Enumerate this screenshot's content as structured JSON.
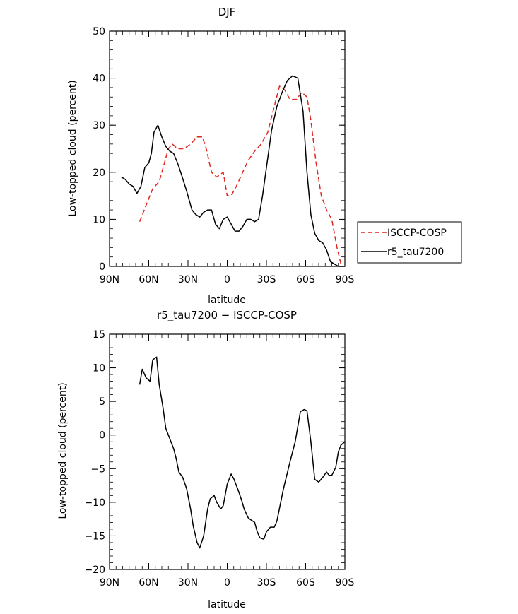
{
  "chart_data": [
    {
      "type": "line",
      "title": "DJF",
      "xlabel": "latitude",
      "ylabel": "Low-topped cloud (percent)",
      "xlim": [
        -90,
        90
      ],
      "ylim": [
        0,
        50
      ],
      "x_ticks": [
        -90,
        -60,
        -30,
        0,
        30,
        60,
        90
      ],
      "x_tick_labels": [
        "90N",
        "60N",
        "30N",
        "0",
        "30S",
        "60S",
        "90S"
      ],
      "y_ticks": [
        0,
        10,
        20,
        30,
        40,
        50
      ],
      "y_tick_labels": [
        "0",
        "10",
        "20",
        "30",
        "40",
        "50"
      ],
      "legend_position": "right",
      "series": [
        {
          "name": "ISCCP-COSP",
          "color": "#e0261e",
          "dash": "dashed",
          "x": [
            -67,
            -62,
            -57,
            -52,
            -48,
            -45,
            -42,
            -38,
            -33,
            -28,
            -23,
            -19,
            -16,
            -12,
            -8,
            -3,
            0,
            3,
            7,
            11,
            16,
            21,
            26,
            31,
            36,
            40,
            44,
            48,
            53,
            57,
            61,
            64,
            68,
            72,
            76,
            80,
            84,
            87
          ],
          "values": [
            9.5,
            13,
            16.5,
            18,
            22,
            25,
            26,
            25,
            25,
            26,
            27.5,
            27.5,
            25,
            20,
            19,
            20,
            15,
            15,
            17,
            19.5,
            22.5,
            24.5,
            26,
            28.5,
            34,
            38.3,
            37.5,
            35.5,
            35.5,
            37,
            36,
            31,
            22,
            15,
            12,
            10,
            4,
            0.5
          ]
        },
        {
          "name": "r5_tau7200",
          "color": "#000000",
          "dash": "solid",
          "x": [
            -81,
            -78,
            -75,
            -72,
            -69,
            -66,
            -63,
            -60,
            -58,
            -56,
            -53,
            -50,
            -47,
            -44,
            -41,
            -38,
            -35,
            -31,
            -27,
            -24,
            -21,
            -18,
            -15,
            -12,
            -9,
            -6,
            -3,
            0,
            3,
            6,
            9,
            12,
            15,
            18,
            21,
            24,
            27,
            30,
            34,
            38,
            42,
            46,
            50,
            54,
            58,
            61,
            64,
            67,
            70,
            73,
            76,
            79,
            82,
            85,
            88,
            90
          ],
          "values": [
            19,
            18.5,
            17.5,
            17,
            15.5,
            17,
            21,
            22,
            24,
            28.5,
            30,
            27.5,
            25.5,
            24.5,
            24,
            22,
            19.5,
            16,
            12,
            11,
            10.5,
            11.5,
            12,
            12,
            9,
            8,
            10,
            10.5,
            9,
            7.5,
            7.5,
            8.5,
            10,
            10,
            9.5,
            10,
            15,
            21,
            29,
            34,
            37,
            39.5,
            40.5,
            40,
            33,
            20,
            11,
            7,
            5.5,
            5,
            3.5,
            1,
            0.5,
            0,
            0,
            0
          ]
        }
      ]
    },
    {
      "type": "line",
      "title": "r5_tau7200 − ISCCP-COSP",
      "xlabel": "latitude",
      "ylabel": "Low-topped cloud (percent)",
      "xlim": [
        -90,
        90
      ],
      "ylim": [
        -20,
        15
      ],
      "x_ticks": [
        -90,
        -60,
        -30,
        0,
        30,
        60,
        90
      ],
      "x_tick_labels": [
        "90N",
        "60N",
        "30N",
        "0",
        "30S",
        "60S",
        "90S"
      ],
      "y_ticks": [
        -20,
        -15,
        -10,
        -5,
        0,
        5,
        10,
        15
      ],
      "y_tick_labels": [
        "−20",
        "−15",
        "−10",
        "−5",
        "0",
        "5",
        "10",
        "15"
      ],
      "series": [
        {
          "name": "r5_tau7200 − ISCCP-COSP",
          "color": "#000000",
          "dash": "solid",
          "x": [
            -67,
            -65,
            -62,
            -59,
            -57,
            -54,
            -52,
            -49,
            -47,
            -43,
            -41,
            -39,
            -37,
            -34,
            -31,
            -28,
            -26,
            -23,
            -21,
            -18,
            -15,
            -13,
            -10,
            -8,
            -5,
            -3,
            0,
            3,
            5,
            8,
            11,
            13,
            16,
            18,
            21,
            23,
            25,
            28,
            30,
            33,
            36,
            38,
            43,
            48,
            52,
            56,
            59,
            61,
            64,
            67,
            70,
            73,
            76,
            78,
            80,
            83,
            85,
            87,
            90
          ],
          "values": [
            7.5,
            9.8,
            8.5,
            8,
            11.2,
            11.6,
            7.5,
            4,
            1,
            -1,
            -2,
            -3.5,
            -5.5,
            -6.3,
            -8,
            -11,
            -13.5,
            -16,
            -16.8,
            -15,
            -11,
            -9.5,
            -9,
            -10,
            -11,
            -10.5,
            -7.3,
            -5.8,
            -6.5,
            -8,
            -9.7,
            -11,
            -12.3,
            -12.6,
            -13,
            -14.4,
            -15.3,
            -15.5,
            -14.4,
            -13.7,
            -13.7,
            -12.8,
            -8,
            -4,
            -1,
            3.5,
            3.8,
            3.6,
            -1,
            -6.6,
            -7,
            -6.3,
            -5.5,
            -6,
            -6,
            -4.8,
            -2.5,
            -1.5,
            -1
          ]
        }
      ]
    }
  ]
}
